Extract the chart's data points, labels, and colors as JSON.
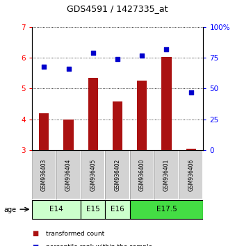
{
  "title": "GDS4591 / 1427335_at",
  "samples": [
    "GSM936403",
    "GSM936404",
    "GSM936405",
    "GSM936402",
    "GSM936400",
    "GSM936401",
    "GSM936406"
  ],
  "red_values": [
    4.2,
    4.0,
    5.35,
    4.57,
    5.25,
    6.02,
    3.05
  ],
  "blue_values": [
    68,
    66,
    79,
    74,
    77,
    82,
    47
  ],
  "age_groups": [
    {
      "label": "E14",
      "indices": [
        0,
        1
      ],
      "color": "#ccffcc"
    },
    {
      "label": "E15",
      "indices": [
        2
      ],
      "color": "#ccffcc"
    },
    {
      "label": "E16",
      "indices": [
        3
      ],
      "color": "#ccffcc"
    },
    {
      "label": "E17.5",
      "indices": [
        4,
        5,
        6
      ],
      "color": "#44dd44"
    }
  ],
  "ylim_left": [
    3,
    7
  ],
  "ylim_right": [
    0,
    100
  ],
  "yticks_left": [
    3,
    4,
    5,
    6,
    7
  ],
  "yticks_right": [
    0,
    25,
    50,
    75,
    100
  ],
  "yticklabels_right": [
    "0",
    "25",
    "50",
    "75",
    "100%"
  ],
  "bar_color": "#aa1111",
  "dot_color": "#0000cc",
  "sample_box_color": "#d3d3d3",
  "background_color": "#ffffff"
}
